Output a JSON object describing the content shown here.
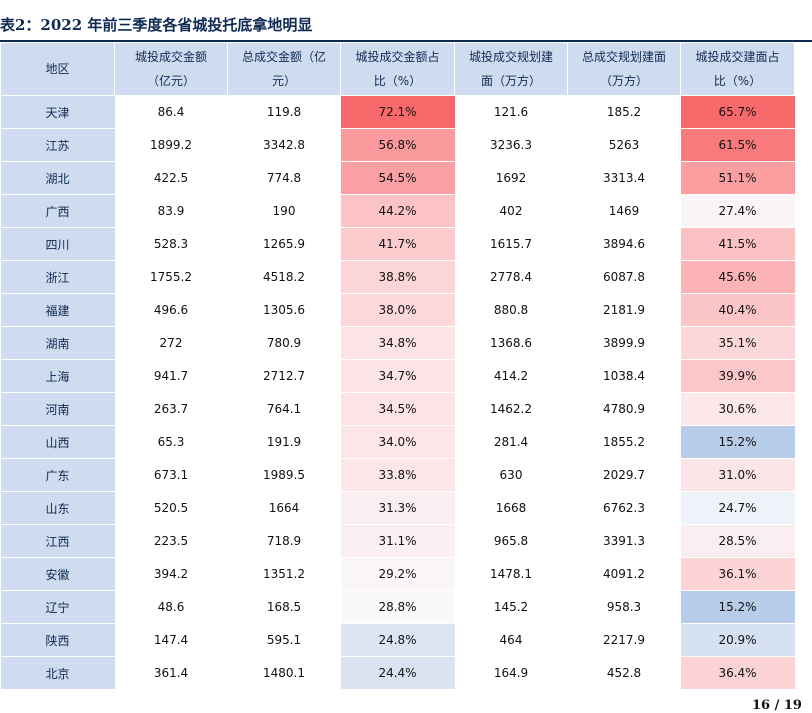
{
  "title": "表2：2022 年前三季度各省城投托底拿地明显",
  "columns": [
    [
      "地区"
    ],
    [
      "城投成交金额",
      "（亿元）"
    ],
    [
      "总成交金额（亿",
      "元）"
    ],
    [
      "城投成交金额占",
      "比（%）"
    ],
    [
      "城投成交规划建",
      "面（万方）"
    ],
    [
      "总成交规划建面",
      "（万方）"
    ],
    [
      "城投成交建面占",
      "比（%）"
    ]
  ],
  "rows": [
    {
      "region": "天津",
      "c1": "86.4",
      "c2": "119.8",
      "c3": "72.1%",
      "c4": "121.6",
      "c5": "185.2",
      "c6": "65.7%",
      "bg3": "#f8696b",
      "bg6": "#f8696b"
    },
    {
      "region": "江苏",
      "c1": "1899.2",
      "c2": "3342.8",
      "c3": "56.8%",
      "c4": "3236.3",
      "c5": "5263",
      "c6": "61.5%",
      "bg3": "#fa9a9c",
      "bg6": "#f97a7c"
    },
    {
      "region": "湖北",
      "c1": "422.5",
      "c2": "774.8",
      "c3": "54.5%",
      "c4": "1692",
      "c5": "3313.4",
      "c6": "51.1%",
      "bg3": "#fa9fa2",
      "bg6": "#fb9ea0"
    },
    {
      "region": "广西",
      "c1": "83.9",
      "c2": "190",
      "c3": "44.2%",
      "c4": "402",
      "c5": "1469",
      "c6": "27.4%",
      "bg3": "#fcc3c5",
      "bg6": "#fbf4f6"
    },
    {
      "region": "四川",
      "c1": "528.3",
      "c2": "1265.9",
      "c3": "41.7%",
      "c4": "1615.7",
      "c5": "3894.6",
      "c6": "41.5%",
      "bg3": "#fccbcd",
      "bg6": "#fcc1c3"
    },
    {
      "region": "浙江",
      "c1": "1755.2",
      "c2": "4518.2",
      "c3": "38.8%",
      "c4": "2778.4",
      "c5": "6087.8",
      "c6": "45.6%",
      "bg3": "#fcd5d7",
      "bg6": "#fbb3b5"
    },
    {
      "region": "福建",
      "c1": "496.6",
      "c2": "1305.6",
      "c3": "38.0%",
      "c4": "880.8",
      "c5": "2181.9",
      "c6": "40.4%",
      "bg3": "#fcd8da",
      "bg6": "#fcc5c7"
    },
    {
      "region": "湖南",
      "c1": "272",
      "c2": "780.9",
      "c3": "34.8%",
      "c4": "1368.6",
      "c5": "3899.9",
      "c6": "35.1%",
      "bg3": "#fce3e5",
      "bg6": "#fcd7d9"
    },
    {
      "region": "上海",
      "c1": "941.7",
      "c2": "2712.7",
      "c3": "34.7%",
      "c4": "414.2",
      "c5": "1038.4",
      "c6": "39.9%",
      "bg3": "#fce3e5",
      "bg6": "#fcc7c9"
    },
    {
      "region": "河南",
      "c1": "263.7",
      "c2": "764.1",
      "c3": "34.5%",
      "c4": "1462.2",
      "c5": "4780.9",
      "c6": "30.6%",
      "bg3": "#fce4e6",
      "bg6": "#fce7e9"
    },
    {
      "region": "山西",
      "c1": "65.3",
      "c2": "191.9",
      "c3": "34.0%",
      "c4": "281.4",
      "c5": "1855.2",
      "c6": "15.2%",
      "bg3": "#fce6e8",
      "bg6": "#b7cce8"
    },
    {
      "region": "广东",
      "c1": "673.1",
      "c2": "1989.5",
      "c3": "33.8%",
      "c4": "630",
      "c5": "2029.7",
      "c6": "31.0%",
      "bg3": "#fce6e8",
      "bg6": "#fce5e7"
    },
    {
      "region": "山东",
      "c1": "520.5",
      "c2": "1664",
      "c3": "31.3%",
      "c4": "1668",
      "c5": "6762.3",
      "c6": "24.7%",
      "bg3": "#fbeef0",
      "bg6": "#eef3fa"
    },
    {
      "region": "江西",
      "c1": "223.5",
      "c2": "718.9",
      "c3": "31.1%",
      "c4": "965.8",
      "c5": "3391.3",
      "c6": "28.5%",
      "bg3": "#fbeff1",
      "bg6": "#fbeef0"
    },
    {
      "region": "安徽",
      "c1": "394.2",
      "c2": "1351.2",
      "c3": "29.2%",
      "c4": "1478.1",
      "c5": "4091.2",
      "c6": "36.1%",
      "bg3": "#fbf6f8",
      "bg6": "#fcd4d6"
    },
    {
      "region": "辽宁",
      "c1": "48.6",
      "c2": "168.5",
      "c3": "28.8%",
      "c4": "145.2",
      "c5": "958.3",
      "c6": "15.2%",
      "bg3": "#fbf8fa",
      "bg6": "#b7cce8"
    },
    {
      "region": "陕西",
      "c1": "147.4",
      "c2": "595.1",
      "c3": "24.8%",
      "c4": "464",
      "c5": "2217.9",
      "c6": "20.9%",
      "bg3": "#dbe5f3",
      "bg6": "#d6e1f1"
    },
    {
      "region": "北京",
      "c1": "361.4",
      "c2": "1480.1",
      "c3": "24.4%",
      "c4": "164.9",
      "c5": "452.8",
      "c6": "36.4%",
      "bg3": "#d9e3f2",
      "bg6": "#fcd3d5"
    }
  ],
  "page": "16 / 19"
}
